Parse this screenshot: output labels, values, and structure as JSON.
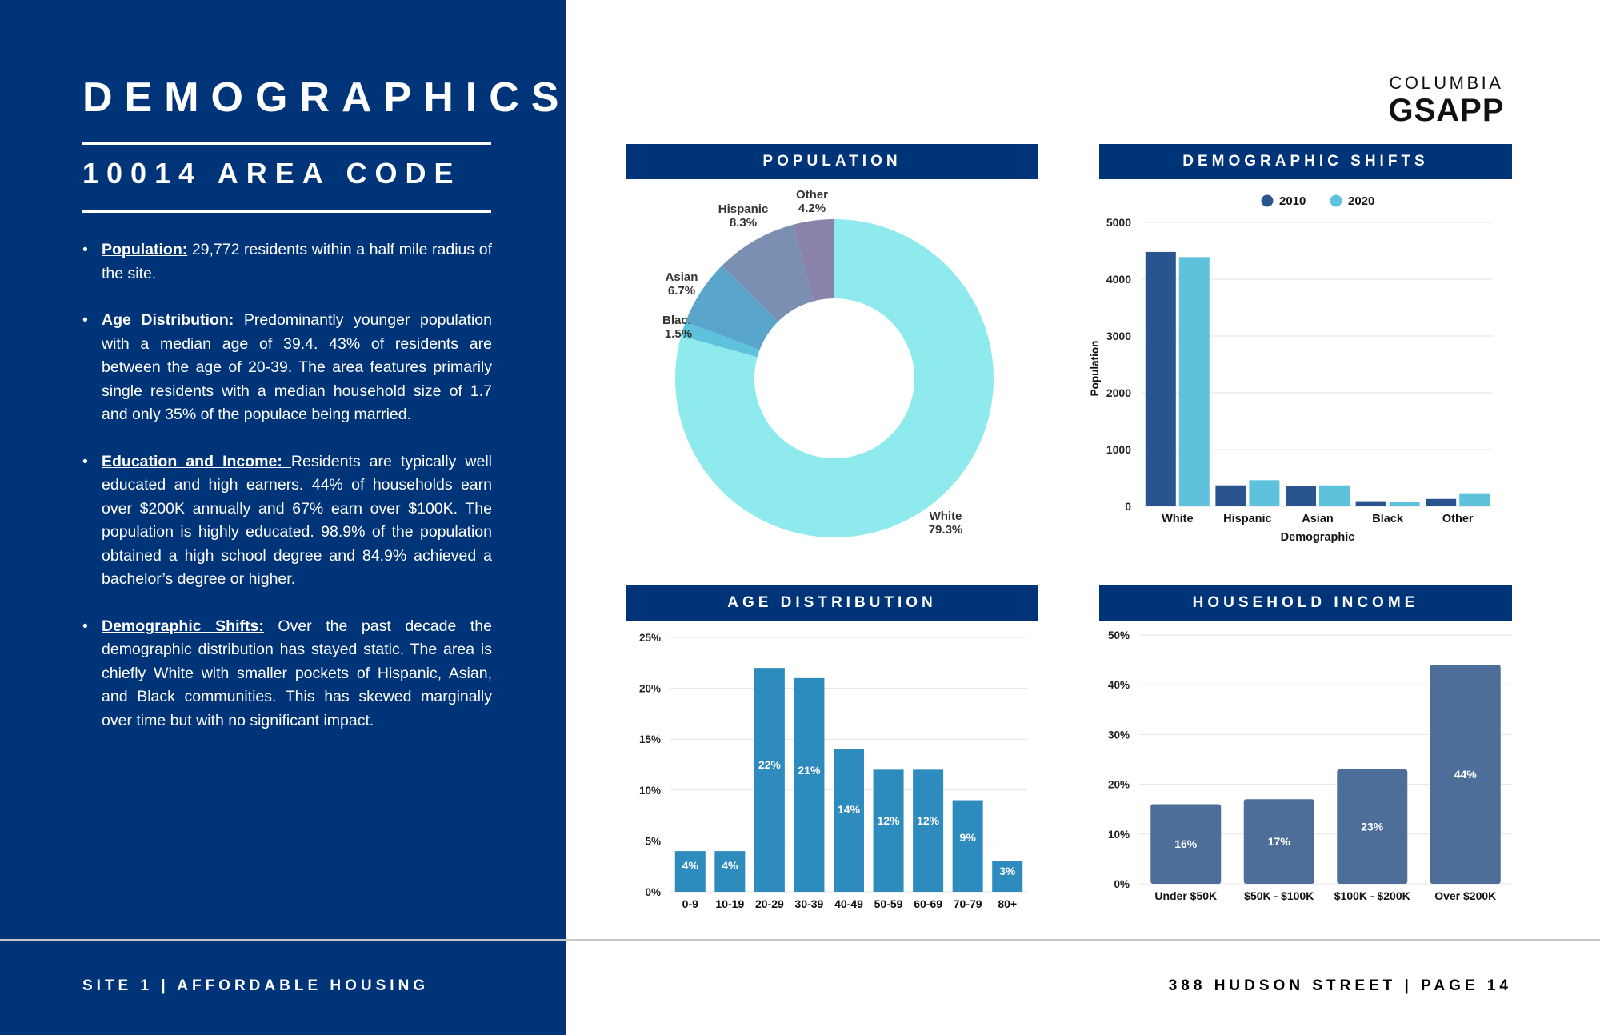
{
  "sidebar": {
    "title": "DEMOGRAPHICS",
    "subtitle": "10014 AREA CODE",
    "bullets": [
      {
        "lead": "Population:",
        "text": " 29,772 residents within a half mile radius of the site."
      },
      {
        "lead": "Age Distribution: ",
        "text": "Predominantly younger population with a median age of 39.4. 43% of residents are between the age of 20-39.  The area features primarily single residents with a median household size of 1.7 and only 35% of the populace being married."
      },
      {
        "lead": "Education and Income: ",
        "text": "Residents are typically well educated and high earners. 44% of households earn over $200K annually and 67% earn over $100K. The population is highly educated. 98.9% of the population obtained a high school degree and 84.9% achieved a bachelor’s degree or higher."
      },
      {
        "lead": "Demographic Shifts:",
        "text": " Over the past decade the demographic distribution has stayed static. The area is chiefly White with smaller pockets of Hispanic, Asian, and Black communities. This has skewed marginally over time but with no significant impact."
      }
    ]
  },
  "logo": {
    "top": "COLUMBIA",
    "main": "GSAPP"
  },
  "footer": {
    "left": "SITE 1 | AFFORDABLE HOUSING",
    "right": "388 HUDSON STREET | PAGE 14"
  },
  "colors": {
    "navy": "#003478",
    "teal": "#8eeaed",
    "bar_age": "#2e8bbd",
    "bar_income": "#4e6e9a",
    "series_2010": "#2a5490",
    "series_2020": "#5fc2dd"
  },
  "chart_data": [
    {
      "id": "population",
      "type": "pie",
      "title": "POPULATION",
      "slices": [
        {
          "label": "White",
          "value": 79.3,
          "display": "79.3%",
          "color": "#8eeaed"
        },
        {
          "label": "Black",
          "value": 1.5,
          "display": "1.5%",
          "color": "#5fc2dd"
        },
        {
          "label": "Asian",
          "value": 6.7,
          "display": "6.7%",
          "color": "#5aa5cc"
        },
        {
          "label": "Hispanic",
          "value": 8.3,
          "display": "8.3%",
          "color": "#7a8fb2"
        },
        {
          "label": "Other",
          "value": 4.2,
          "display": "4.2%",
          "color": "#8a82aa"
        }
      ]
    },
    {
      "id": "demographic_shifts",
      "type": "bar",
      "title": "DEMOGRAPHIC SHIFTS",
      "categories": [
        "White",
        "Hispanic",
        "Asian",
        "Black",
        "Other"
      ],
      "series": [
        {
          "name": "2010",
          "color": "#2a5490",
          "values": [
            4480,
            370,
            360,
            90,
            130
          ]
        },
        {
          "name": "2020",
          "color": "#5fc2dd",
          "values": [
            4390,
            460,
            370,
            80,
            230
          ]
        }
      ],
      "xlabel": "Demographic",
      "ylabel": "Population",
      "ylim": [
        0,
        5000
      ],
      "yticks": [
        0,
        1000,
        2000,
        3000,
        4000,
        5000
      ],
      "ytick_labels": [
        "0",
        "1000",
        "2000",
        "3000",
        "4000",
        "5000"
      ],
      "legend": "top-center"
    },
    {
      "id": "age_distribution",
      "type": "bar",
      "title": "AGE DISTRIBUTION",
      "categories": [
        "0-9",
        "10-19",
        "20-29",
        "30-39",
        "40-49",
        "50-59",
        "60-69",
        "70-79",
        "80+"
      ],
      "values": [
        4,
        4,
        22,
        21,
        14,
        12,
        12,
        9,
        3
      ],
      "value_labels": [
        "4%",
        "4%",
        "22%",
        "21%",
        "14%",
        "12%",
        "12%",
        "9%",
        "3%"
      ],
      "ylim": [
        0,
        25
      ],
      "yticks": [
        0,
        5,
        10,
        15,
        20,
        25
      ],
      "ytick_labels": [
        "0%",
        "5%",
        "10%",
        "15%",
        "20%",
        "25%"
      ]
    },
    {
      "id": "household_income",
      "type": "bar",
      "title": "HOUSEHOLD INCOME",
      "categories": [
        "Under $50K",
        "$50K - $100K",
        "$100K - $200K",
        "Over $200K"
      ],
      "values": [
        16,
        17,
        23,
        44
      ],
      "value_labels": [
        "16%",
        "17%",
        "23%",
        "44%"
      ],
      "ylim": [
        0,
        50
      ],
      "yticks": [
        0,
        10,
        20,
        30,
        40,
        50
      ],
      "ytick_labels": [
        "0%",
        "10%",
        "20%",
        "30%",
        "40%",
        "50%"
      ]
    }
  ]
}
